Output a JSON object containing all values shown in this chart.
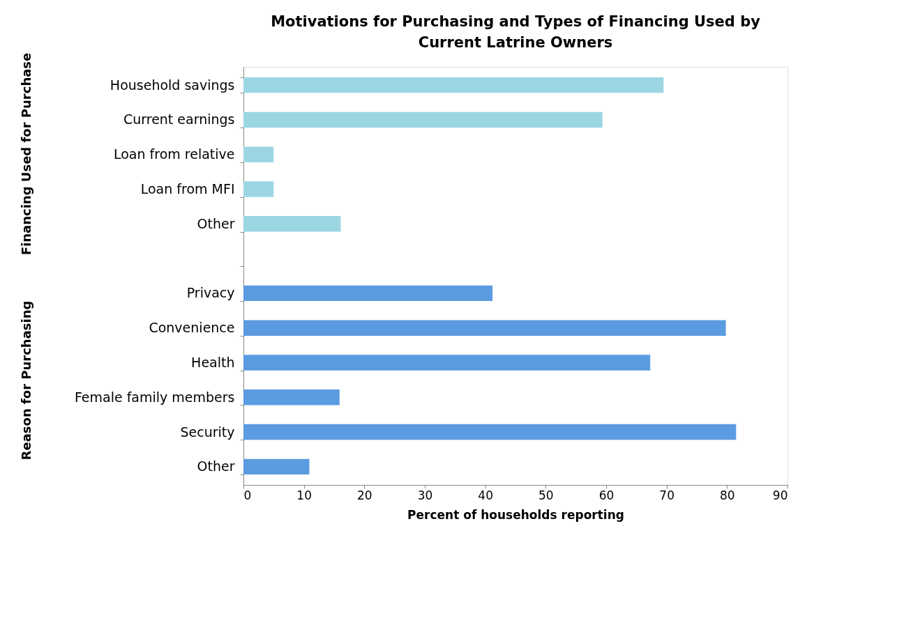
{
  "chart_data": {
    "type": "bar",
    "orientation": "horizontal",
    "title": "Motivations for Purchasing and Types of Financing Used by Current Latrine Owners",
    "categories": [
      "Household savings",
      "Current earnings",
      "Loan from relative",
      "Loan from MFI",
      "Other",
      null,
      "Privacy",
      "Convenience",
      "Health",
      "Female family members",
      "Security",
      "Other"
    ],
    "series": [
      {
        "color": "#9dd6e3",
        "values": [
          69.5,
          59.4,
          5.0,
          5.0,
          16.1,
          null,
          null,
          null,
          null,
          null,
          null,
          null
        ]
      },
      {
        "color": "#5b9be0",
        "values": [
          null,
          null,
          null,
          null,
          null,
          null,
          41.2,
          79.8,
          67.3,
          15.9,
          81.5,
          10.9
        ]
      }
    ],
    "annotations": [
      "Financing Used for Purchase",
      "Reason for Purchasing"
    ],
    "xlabel": "Percent of households reporting",
    "xlim": [
      0,
      90
    ],
    "xticks": [
      0,
      10,
      20,
      30,
      40,
      50,
      60,
      70,
      80,
      90
    ],
    "grid": false,
    "legend": false
  }
}
